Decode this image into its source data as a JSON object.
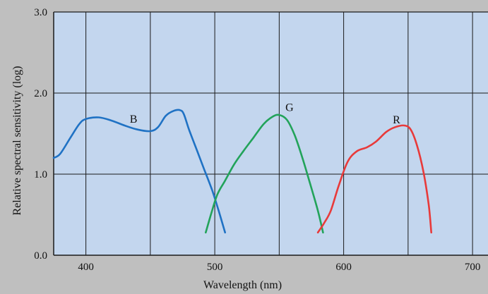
{
  "chart_data": {
    "type": "line",
    "title": "",
    "xlabel": "Wavelength (nm)",
    "ylabel": "Relative spectral sensitivity (log)",
    "xlim": [
      375,
      712
    ],
    "ylim": [
      0.0,
      3.0
    ],
    "xticks": [
      400,
      500,
      600,
      700
    ],
    "xtick_labels": [
      "400",
      "500",
      "600",
      "700"
    ],
    "yticks": [
      0.0,
      1.0,
      2.0,
      3.0
    ],
    "ytick_labels": [
      "0.0",
      "1.0",
      "2.0",
      "3.0"
    ],
    "x_gridlines": [
      400,
      450,
      500,
      550,
      600,
      650,
      700
    ],
    "y_gridlines": [
      1.0,
      2.0
    ],
    "grid": true,
    "legend": "none",
    "plot_background": "#c3d6ee",
    "series": [
      {
        "name": "B",
        "color": "#1f72c4",
        "label_at": [
          437,
          1.68
        ],
        "points": [
          [
            375,
            1.2
          ],
          [
            380,
            1.25
          ],
          [
            388,
            1.45
          ],
          [
            395,
            1.62
          ],
          [
            400,
            1.68
          ],
          [
            410,
            1.7
          ],
          [
            420,
            1.66
          ],
          [
            430,
            1.6
          ],
          [
            440,
            1.55
          ],
          [
            450,
            1.53
          ],
          [
            456,
            1.58
          ],
          [
            462,
            1.72
          ],
          [
            468,
            1.78
          ],
          [
            473,
            1.79
          ],
          [
            476,
            1.74
          ],
          [
            480,
            1.55
          ],
          [
            486,
            1.3
          ],
          [
            492,
            1.05
          ],
          [
            498,
            0.8
          ],
          [
            503,
            0.55
          ],
          [
            508,
            0.28
          ]
        ]
      },
      {
        "name": "G",
        "color": "#22a35a",
        "label_at": [
          558,
          1.82
        ],
        "points": [
          [
            493,
            0.28
          ],
          [
            497,
            0.5
          ],
          [
            502,
            0.75
          ],
          [
            508,
            0.92
          ],
          [
            515,
            1.12
          ],
          [
            522,
            1.28
          ],
          [
            530,
            1.45
          ],
          [
            538,
            1.62
          ],
          [
            545,
            1.71
          ],
          [
            550,
            1.73
          ],
          [
            556,
            1.67
          ],
          [
            562,
            1.48
          ],
          [
            568,
            1.2
          ],
          [
            574,
            0.88
          ],
          [
            580,
            0.55
          ],
          [
            584,
            0.28
          ]
        ]
      },
      {
        "name": "R",
        "color": "#e83a3a",
        "label_at": [
          641,
          1.67
        ],
        "points": [
          [
            580,
            0.28
          ],
          [
            585,
            0.4
          ],
          [
            590,
            0.55
          ],
          [
            596,
            0.85
          ],
          [
            603,
            1.15
          ],
          [
            610,
            1.28
          ],
          [
            618,
            1.33
          ],
          [
            625,
            1.4
          ],
          [
            633,
            1.52
          ],
          [
            640,
            1.58
          ],
          [
            647,
            1.6
          ],
          [
            652,
            1.55
          ],
          [
            657,
            1.35
          ],
          [
            662,
            1.02
          ],
          [
            666,
            0.62
          ],
          [
            668,
            0.28
          ]
        ]
      }
    ]
  }
}
